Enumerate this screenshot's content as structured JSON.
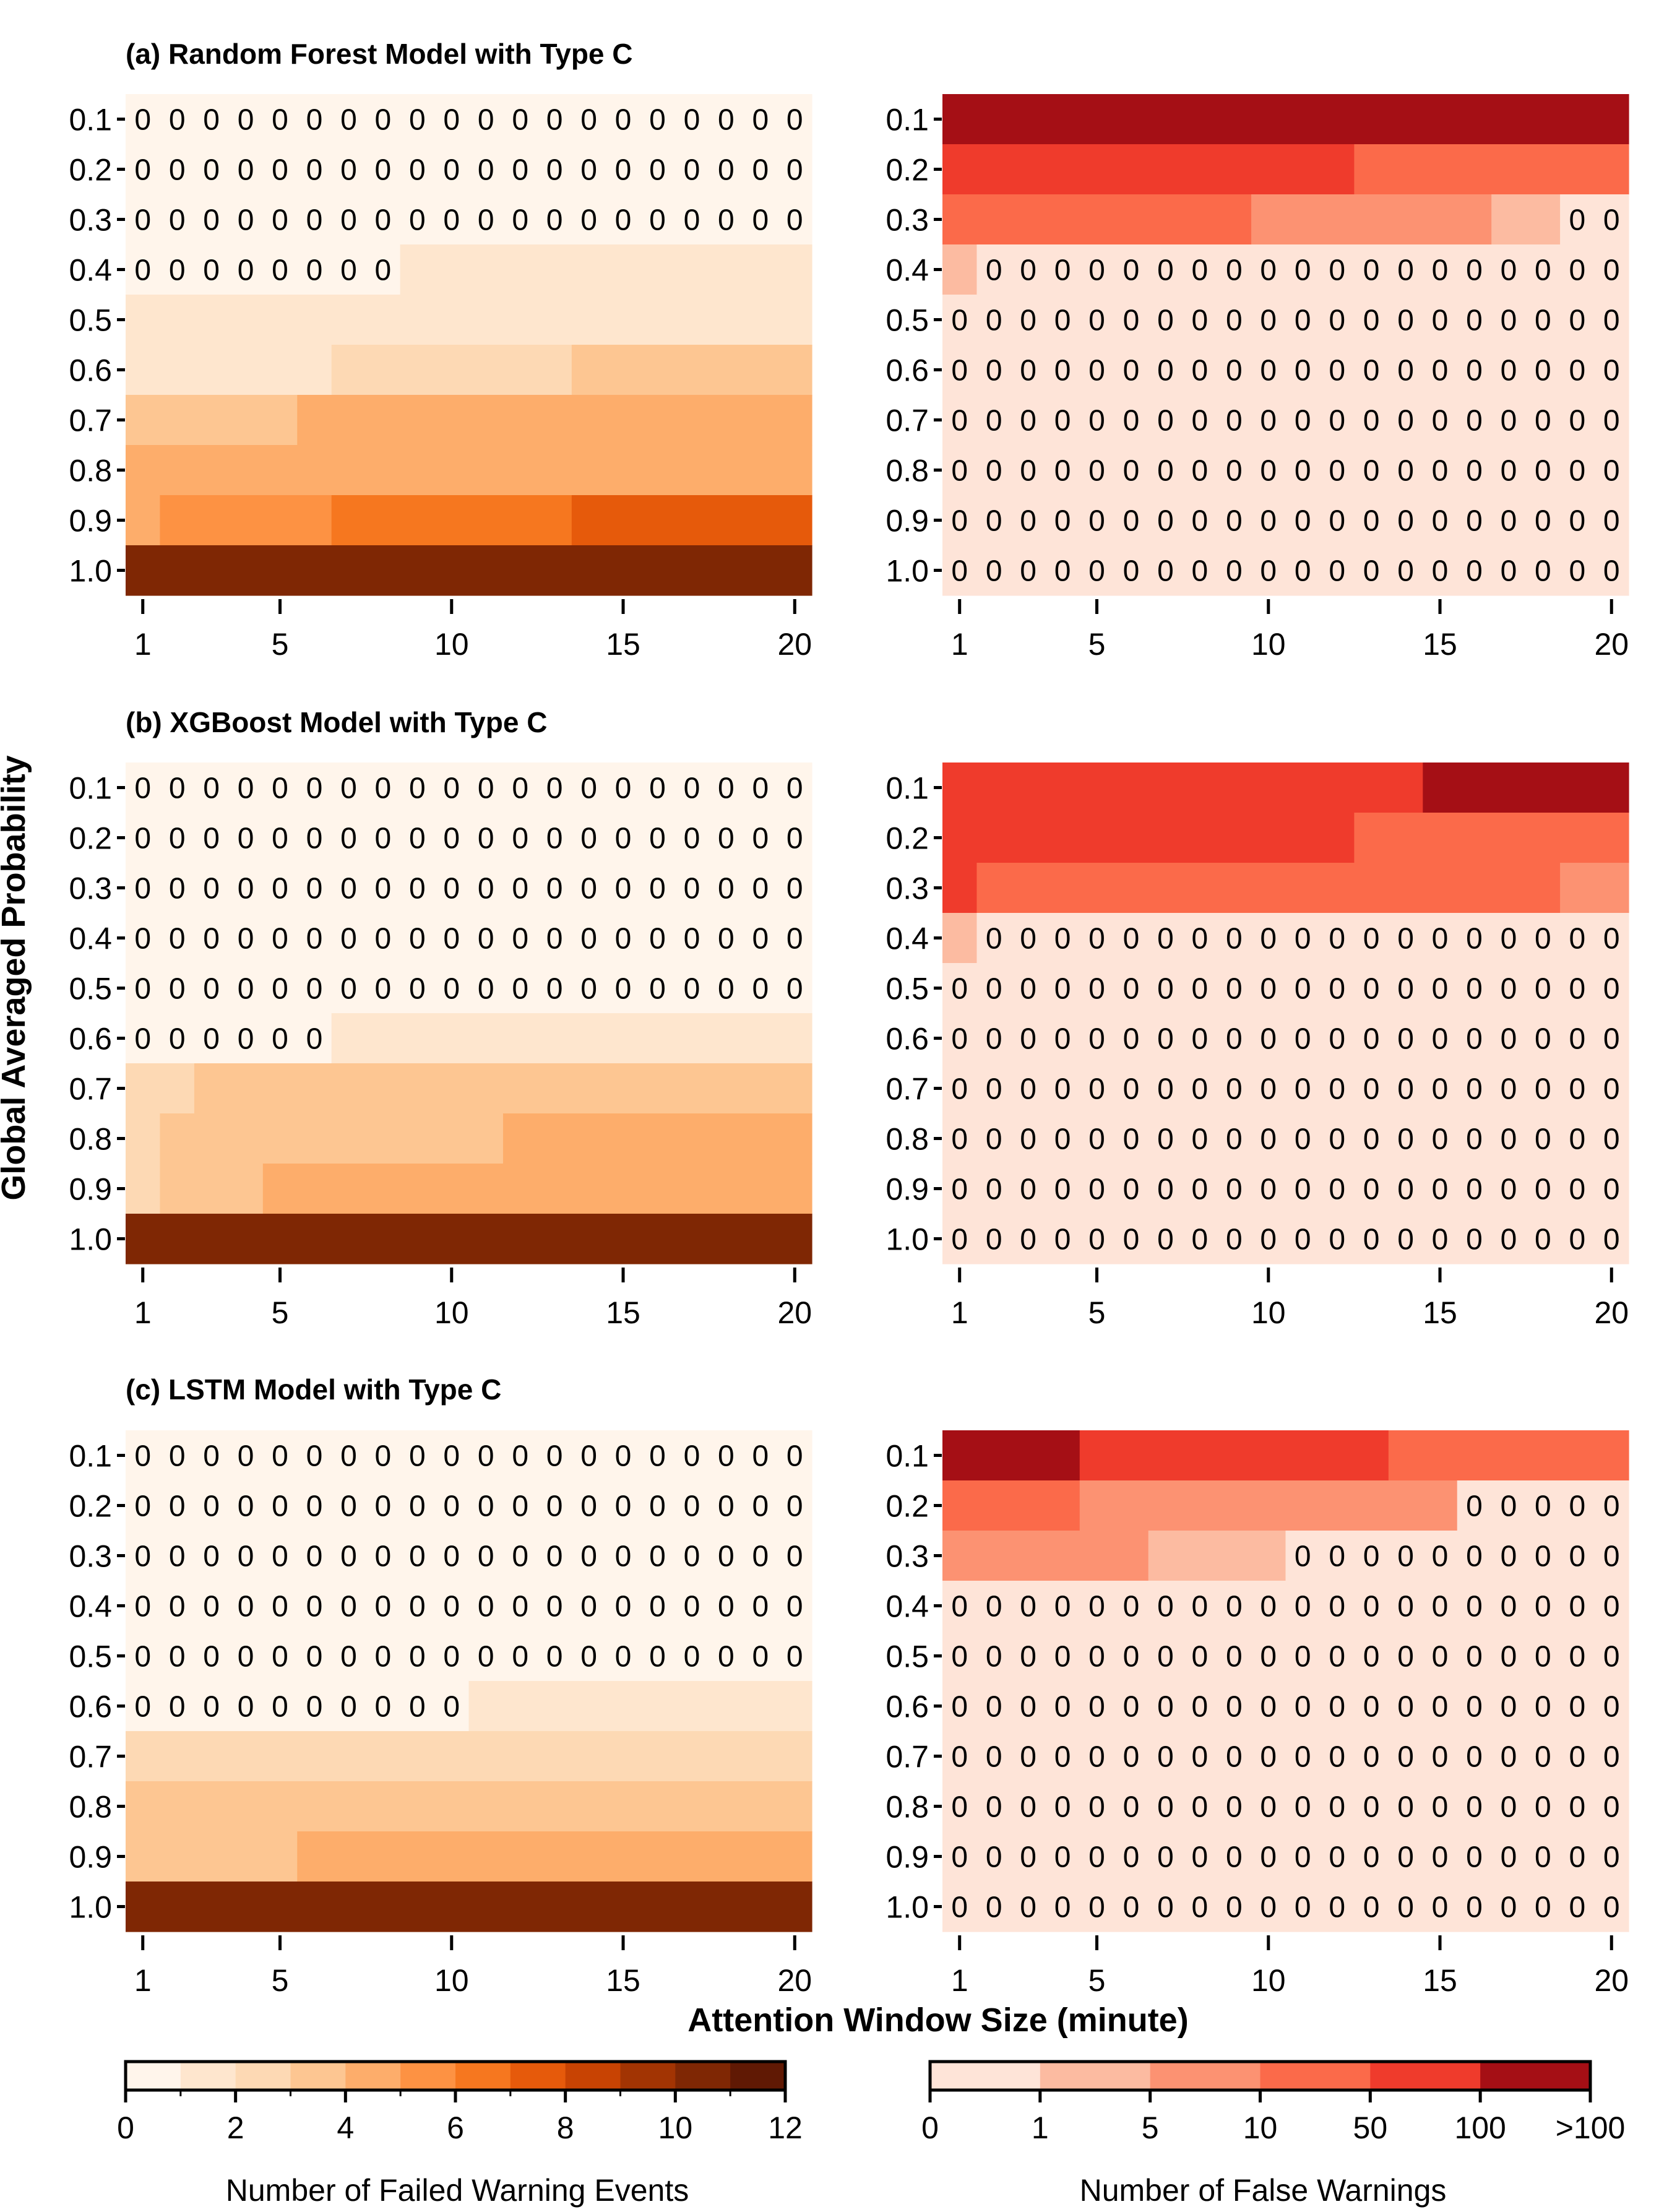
{
  "axis_labels": {
    "ylabel": "Global Averaged Probability",
    "xlabel": "Attention Window Size (minute)"
  },
  "colorbars": {
    "failed": {
      "label": "Number of Failed Warning Events",
      "tick_labels": [
        "0",
        "2",
        "4",
        "6",
        "8",
        "10",
        "12"
      ],
      "colors": [
        "#fff5eb",
        "#fee6ce",
        "#fdd9b4",
        "#fdc692",
        "#fdad6b",
        "#fd9243",
        "#f6771f",
        "#e65a0b",
        "#c84303",
        "#a23403",
        "#7f2704",
        "#601904"
      ]
    },
    "false": {
      "label": "Number of False Warnings",
      "tick_labels": [
        "0",
        "1",
        "5",
        "10",
        "50",
        "100",
        ">100"
      ],
      "colors": [
        "#fee4d8",
        "#fcbba1",
        "#fc9272",
        "#fb6a4a",
        "#ef3b2c",
        "#a50f15"
      ]
    }
  },
  "chart_data": [
    {
      "type": "heatmap",
      "title": "(a) Random Forest Model with Type C",
      "x": [
        1,
        2,
        3,
        4,
        5,
        6,
        7,
        8,
        9,
        10,
        11,
        12,
        13,
        14,
        15,
        16,
        17,
        18,
        19,
        20
      ],
      "x_ticks": [
        "1",
        "5",
        "10",
        "15",
        "20"
      ],
      "y": [
        "0.1",
        "0.2",
        "0.3",
        "0.4",
        "0.5",
        "0.6",
        "0.7",
        "0.8",
        "0.9",
        "1.0"
      ],
      "left": {
        "metric": "Number of Failed Warning Events",
        "rows": [
          [
            [
              1,
              20,
              0
            ]
          ],
          [
            [
              1,
              20,
              0
            ]
          ],
          [
            [
              1,
              20,
              0
            ]
          ],
          [
            [
              1,
              8,
              0
            ],
            [
              9,
              20,
              1
            ]
          ],
          [
            [
              1,
              20,
              1
            ]
          ],
          [
            [
              1,
              6,
              1
            ],
            [
              7,
              13,
              2
            ],
            [
              14,
              20,
              3
            ]
          ],
          [
            [
              1,
              5,
              3
            ],
            [
              6,
              20,
              4
            ]
          ],
          [
            [
              1,
              20,
              4
            ]
          ],
          [
            [
              1,
              1,
              4
            ],
            [
              2,
              6,
              5
            ],
            [
              7,
              13,
              6
            ],
            [
              14,
              20,
              7
            ]
          ],
          [
            [
              1,
              20,
              10
            ]
          ]
        ]
      },
      "right": {
        "metric": "Number of False Warnings",
        "rows": [
          [
            [
              1,
              20,
              5
            ]
          ],
          [
            [
              1,
              12,
              4
            ],
            [
              13,
              20,
              3
            ]
          ],
          [
            [
              1,
              9,
              3
            ],
            [
              10,
              16,
              2
            ],
            [
              17,
              18,
              1
            ],
            [
              19,
              20,
              0
            ]
          ],
          [
            [
              1,
              1,
              1
            ],
            [
              2,
              20,
              0
            ]
          ],
          [
            [
              1,
              20,
              0
            ]
          ],
          [
            [
              1,
              20,
              0
            ]
          ],
          [
            [
              1,
              20,
              0
            ]
          ],
          [
            [
              1,
              20,
              0
            ]
          ],
          [
            [
              1,
              20,
              0
            ]
          ],
          [
            [
              1,
              20,
              0
            ]
          ]
        ]
      }
    },
    {
      "type": "heatmap",
      "title": "(b) XGBoost Model with Type C",
      "x": [
        1,
        2,
        3,
        4,
        5,
        6,
        7,
        8,
        9,
        10,
        11,
        12,
        13,
        14,
        15,
        16,
        17,
        18,
        19,
        20
      ],
      "x_ticks": [
        "1",
        "5",
        "10",
        "15",
        "20"
      ],
      "y": [
        "0.1",
        "0.2",
        "0.3",
        "0.4",
        "0.5",
        "0.6",
        "0.7",
        "0.8",
        "0.9",
        "1.0"
      ],
      "left": {
        "metric": "Number of Failed Warning Events",
        "rows": [
          [
            [
              1,
              20,
              0
            ]
          ],
          [
            [
              1,
              20,
              0
            ]
          ],
          [
            [
              1,
              20,
              0
            ]
          ],
          [
            [
              1,
              20,
              0
            ]
          ],
          [
            [
              1,
              20,
              0
            ]
          ],
          [
            [
              1,
              6,
              0
            ],
            [
              7,
              20,
              1
            ]
          ],
          [
            [
              1,
              2,
              2
            ],
            [
              3,
              20,
              3
            ]
          ],
          [
            [
              1,
              1,
              2
            ],
            [
              2,
              11,
              3
            ],
            [
              12,
              20,
              4
            ]
          ],
          [
            [
              1,
              1,
              2
            ],
            [
              2,
              4,
              3
            ],
            [
              5,
              20,
              4
            ]
          ],
          [
            [
              1,
              20,
              10
            ]
          ]
        ]
      },
      "right": {
        "metric": "Number of False Warnings",
        "rows": [
          [
            [
              1,
              14,
              4
            ],
            [
              15,
              20,
              5
            ]
          ],
          [
            [
              1,
              12,
              4
            ],
            [
              13,
              20,
              3
            ]
          ],
          [
            [
              1,
              1,
              4
            ],
            [
              2,
              18,
              3
            ],
            [
              19,
              20,
              2
            ]
          ],
          [
            [
              1,
              1,
              1
            ],
            [
              2,
              20,
              0
            ]
          ],
          [
            [
              1,
              20,
              0
            ]
          ],
          [
            [
              1,
              20,
              0
            ]
          ],
          [
            [
              1,
              20,
              0
            ]
          ],
          [
            [
              1,
              20,
              0
            ]
          ],
          [
            [
              1,
              20,
              0
            ]
          ],
          [
            [
              1,
              20,
              0
            ]
          ]
        ]
      }
    },
    {
      "type": "heatmap",
      "title": "(c) LSTM Model with Type C",
      "x": [
        1,
        2,
        3,
        4,
        5,
        6,
        7,
        8,
        9,
        10,
        11,
        12,
        13,
        14,
        15,
        16,
        17,
        18,
        19,
        20
      ],
      "x_ticks": [
        "1",
        "5",
        "10",
        "15",
        "20"
      ],
      "y": [
        "0.1",
        "0.2",
        "0.3",
        "0.4",
        "0.5",
        "0.6",
        "0.7",
        "0.8",
        "0.9",
        "1.0"
      ],
      "left": {
        "metric": "Number of Failed Warning Events",
        "rows": [
          [
            [
              1,
              20,
              0
            ]
          ],
          [
            [
              1,
              20,
              0
            ]
          ],
          [
            [
              1,
              20,
              0
            ]
          ],
          [
            [
              1,
              20,
              0
            ]
          ],
          [
            [
              1,
              20,
              0
            ]
          ],
          [
            [
              1,
              10,
              0
            ],
            [
              11,
              20,
              1
            ]
          ],
          [
            [
              1,
              20,
              2
            ]
          ],
          [
            [
              1,
              20,
              3
            ]
          ],
          [
            [
              1,
              5,
              3
            ],
            [
              6,
              20,
              4
            ]
          ],
          [
            [
              1,
              20,
              10
            ]
          ]
        ]
      },
      "right": {
        "metric": "Number of False Warnings",
        "rows": [
          [
            [
              1,
              4,
              5
            ],
            [
              5,
              13,
              4
            ],
            [
              14,
              20,
              3
            ]
          ],
          [
            [
              1,
              4,
              3
            ],
            [
              5,
              15,
              2
            ],
            [
              16,
              20,
              0
            ]
          ],
          [
            [
              1,
              6,
              2
            ],
            [
              7,
              10,
              1
            ],
            [
              11,
              20,
              0
            ]
          ],
          [
            [
              1,
              20,
              0
            ]
          ],
          [
            [
              1,
              20,
              0
            ]
          ],
          [
            [
              1,
              20,
              0
            ]
          ],
          [
            [
              1,
              20,
              0
            ]
          ],
          [
            [
              1,
              20,
              0
            ]
          ],
          [
            [
              1,
              20,
              0
            ]
          ],
          [
            [
              1,
              20,
              0
            ]
          ]
        ]
      }
    }
  ]
}
